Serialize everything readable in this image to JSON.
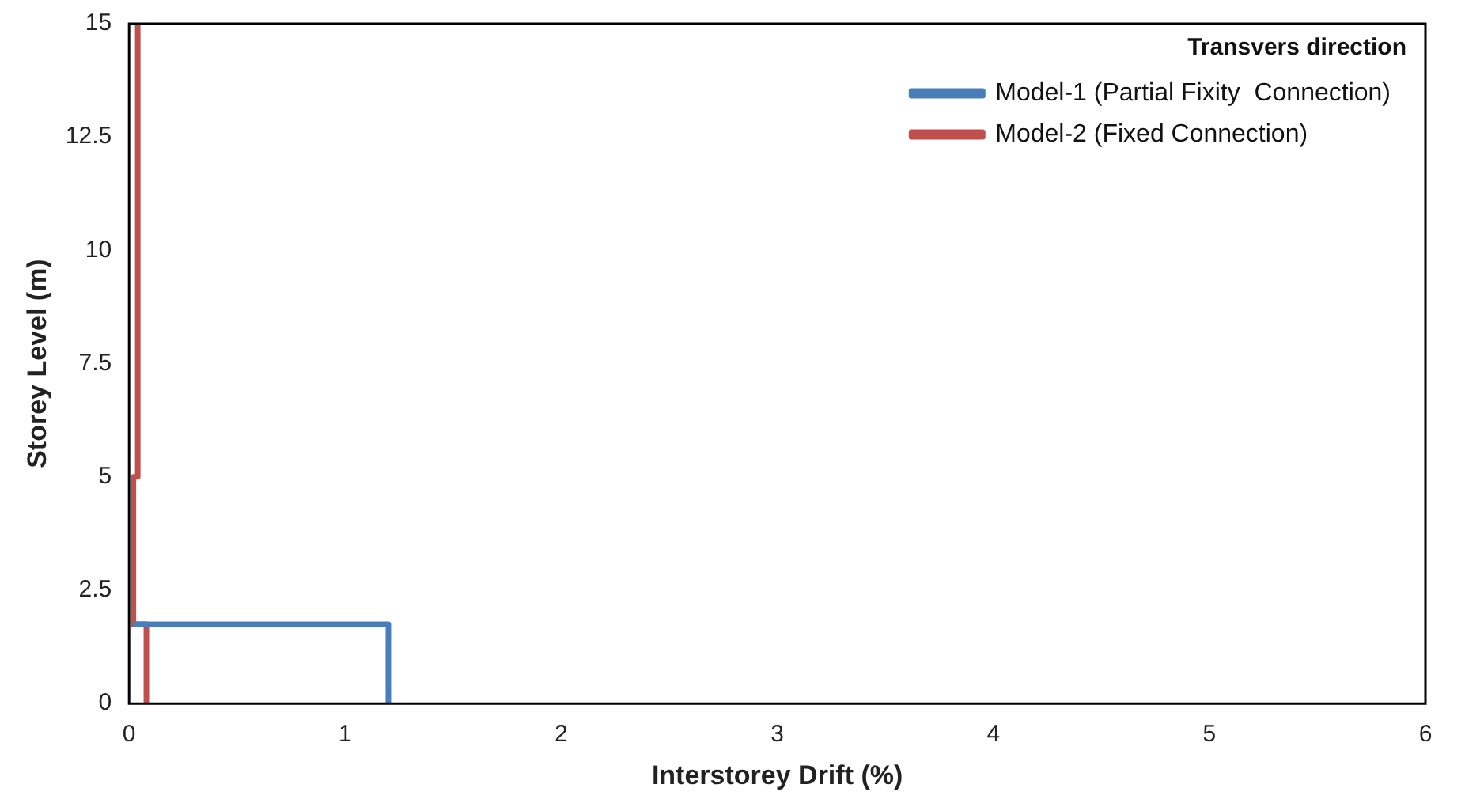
{
  "chart_data": {
    "type": "line",
    "xlabel": "Interstorey Drift (%)",
    "ylabel": "Storey Level (m)",
    "legend_title": "Transvers direction",
    "series": [
      {
        "name": "Model-1 (Partial Fixity  Connection)",
        "color": "#4a7ebb",
        "x": [
          1.2,
          1.2,
          0.02
        ],
        "values": [
          0,
          1.75,
          1.75
        ]
      },
      {
        "name": "Model-2 (Fixed Connection)",
        "color": "#c0504d",
        "x": [
          0.08,
          0.08,
          0.02,
          0.02,
          0.04,
          0.04
        ],
        "values": [
          0,
          1.75,
          1.75,
          5,
          5,
          15
        ]
      }
    ],
    "xlim": [
      0,
      6
    ],
    "xticks": [
      0,
      1,
      2,
      3,
      4,
      5,
      6
    ],
    "ylim": [
      0,
      15
    ],
    "yticks": [
      0,
      2.5,
      5,
      7.5,
      10,
      12.5,
      15
    ],
    "grid": false,
    "legend": "top right",
    "marker": "none",
    "line_style": "solid"
  }
}
